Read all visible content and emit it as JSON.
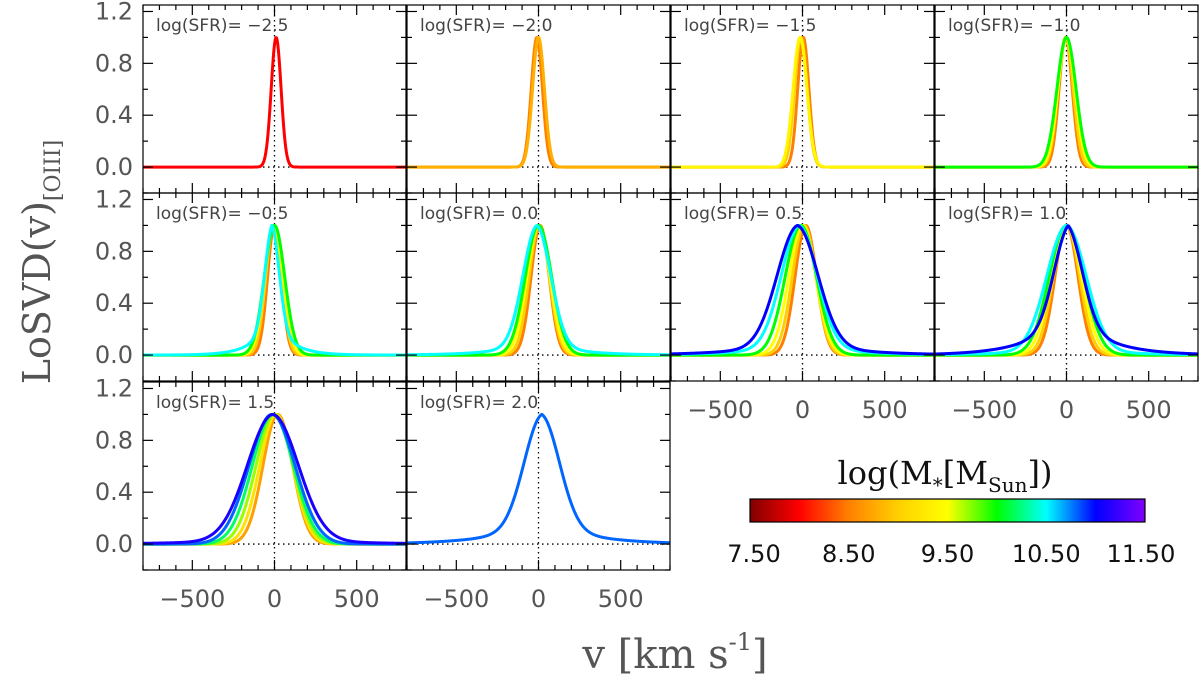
{
  "chart_data": {
    "type": "line",
    "title": "",
    "xlabel": "v [km s^-1]",
    "xlabel_main": "v  [km  s",
    "xlabel_sup": "-1",
    "xlabel_close": "]",
    "ylabel": "LoSVD(v)[OIII]",
    "ylabel_main": "LoSVD(v)",
    "ylabel_sub": "[OIII]",
    "xlim": [
      -800,
      800
    ],
    "ylim": [
      -0.2,
      1.25
    ],
    "xticks": [
      -500,
      0,
      500
    ],
    "xtick_labels": [
      "−500",
      "0",
      "500"
    ],
    "yticks": [
      0.0,
      0.4,
      0.8,
      1.2
    ],
    "ytick_labels": [
      "0.0",
      "0.4",
      "0.8",
      "1.2"
    ],
    "reference_lines": {
      "x": 0,
      "y": 0,
      "style": "dotted"
    },
    "colorbar": {
      "title_main": "log(M",
      "title_sub1": "*",
      "title_mid": "[M",
      "title_sub2": "Sun",
      "title_close": "])",
      "range": [
        7.5,
        11.5
      ],
      "tick_values": [
        7.5,
        8.5,
        9.5,
        10.5,
        11.5
      ],
      "tick_labels": [
        "7.50",
        "8.50",
        "9.50",
        "10.50",
        "11.50"
      ],
      "colormap": [
        "#800000",
        "#ff0000",
        "#ff8000",
        "#ffd000",
        "#ffff00",
        "#00ff00",
        "#00ffff",
        "#0000ff",
        "#8000ff"
      ]
    },
    "panels": [
      {
        "label": "log(SFR)= −2.5",
        "series": [
          {
            "logM": 8.0,
            "center": 10,
            "sigma": 30,
            "tail": 0
          }
        ]
      },
      {
        "label": "log(SFR)= −2.0",
        "series": [
          {
            "logM": 8.5,
            "center": -10,
            "sigma": 34,
            "tail": 0
          },
          {
            "logM": 8.8,
            "center": 0,
            "sigma": 36,
            "tail": 0
          }
        ]
      },
      {
        "label": "log(SFR)= −1.5",
        "series": [
          {
            "logM": 8.5,
            "center": 5,
            "sigma": 34,
            "tail": 0
          },
          {
            "logM": 9.0,
            "center": -10,
            "sigma": 38,
            "tail": 0
          },
          {
            "logM": 9.4,
            "center": -15,
            "sigma": 42,
            "tail": 0
          }
        ]
      },
      {
        "label": "log(SFR)= −1.0",
        "series": [
          {
            "logM": 8.5,
            "center": -5,
            "sigma": 40,
            "tail": 0
          },
          {
            "logM": 9.0,
            "center": -5,
            "sigma": 46,
            "tail": 0
          },
          {
            "logM": 9.5,
            "center": 0,
            "sigma": 52,
            "tail": 0
          },
          {
            "logM": 10.0,
            "center": 0,
            "sigma": 58,
            "tail": 0
          }
        ]
      },
      {
        "label": "log(SFR)= −0.5",
        "series": [
          {
            "logM": 8.5,
            "center": 0,
            "sigma": 42,
            "tail": 0
          },
          {
            "logM": 9.0,
            "center": -5,
            "sigma": 48,
            "tail": 0
          },
          {
            "logM": 9.5,
            "center": -5,
            "sigma": 55,
            "tail": 0
          },
          {
            "logM": 10.0,
            "center": 0,
            "sigma": 62,
            "tail": 0
          },
          {
            "logM": 10.5,
            "center": -15,
            "sigma": 45,
            "tail": 0.3
          }
        ]
      },
      {
        "label": "log(SFR)=  0.0",
        "series": [
          {
            "logM": 8.5,
            "center": 10,
            "sigma": 55,
            "tail": 0
          },
          {
            "logM": 9.0,
            "center": 5,
            "sigma": 62,
            "tail": 0
          },
          {
            "logM": 9.5,
            "center": 0,
            "sigma": 70,
            "tail": 0
          },
          {
            "logM": 10.0,
            "center": 0,
            "sigma": 80,
            "tail": 0
          },
          {
            "logM": 10.5,
            "center": -10,
            "sigma": 85,
            "tail": 0.12
          }
        ]
      },
      {
        "label": "log(SFR)=  0.5",
        "series": [
          {
            "logM": 8.5,
            "center": 20,
            "sigma": 65,
            "tail": 0
          },
          {
            "logM": 9.0,
            "center": 10,
            "sigma": 72,
            "tail": 0
          },
          {
            "logM": 9.5,
            "center": 0,
            "sigma": 82,
            "tail": 0
          },
          {
            "logM": 10.0,
            "center": -10,
            "sigma": 95,
            "tail": 0
          },
          {
            "logM": 10.5,
            "center": -20,
            "sigma": 110,
            "tail": 0.1
          },
          {
            "logM": 11.0,
            "center": -30,
            "sigma": 125,
            "tail": 0.12
          }
        ]
      },
      {
        "label": "log(SFR)=  1.0",
        "series": [
          {
            "logM": 8.5,
            "center": 0,
            "sigma": 70,
            "tail": 0
          },
          {
            "logM": 9.0,
            "center": 0,
            "sigma": 80,
            "tail": 0
          },
          {
            "logM": 9.5,
            "center": 0,
            "sigma": 92,
            "tail": 0
          },
          {
            "logM": 10.0,
            "center": 0,
            "sigma": 105,
            "tail": 0
          },
          {
            "logM": 10.5,
            "center": 0,
            "sigma": 120,
            "tail": 0.06
          },
          {
            "logM": 11.0,
            "center": 10,
            "sigma": 90,
            "tail": 0.35
          }
        ]
      },
      {
        "label": "log(SFR)=  1.5",
        "series": [
          {
            "logM": 8.7,
            "center": 20,
            "sigma": 90,
            "tail": 0
          },
          {
            "logM": 9.2,
            "center": 10,
            "sigma": 100,
            "tail": 0
          },
          {
            "logM": 9.7,
            "center": 0,
            "sigma": 112,
            "tail": 0
          },
          {
            "logM": 10.2,
            "center": -10,
            "sigma": 125,
            "tail": 0
          },
          {
            "logM": 10.8,
            "center": -15,
            "sigma": 140,
            "tail": 0
          },
          {
            "logM": 11.1,
            "center": -10,
            "sigma": 155,
            "tail": 0.05
          }
        ]
      },
      {
        "label": "log(SFR)=  2.0",
        "series": [
          {
            "logM": 10.8,
            "center": 20,
            "sigma": 110,
            "tail": 0.2
          }
        ]
      }
    ]
  }
}
